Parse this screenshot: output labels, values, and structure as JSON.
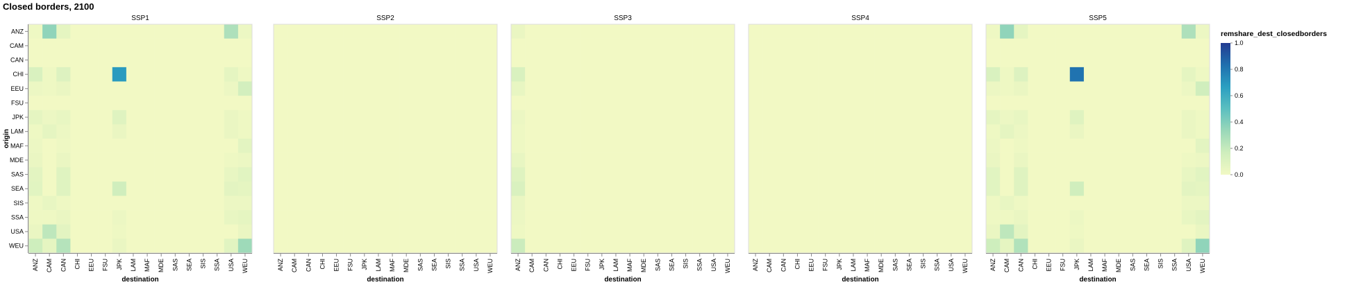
{
  "title": "Closed borders, 2100",
  "chart_data": {
    "type": "heatmap",
    "title": "Closed borders, 2100",
    "xlabel": "destination",
    "ylabel": "origin",
    "panels": [
      "SSP1",
      "SSP2",
      "SSP3",
      "SSP4",
      "SSP5"
    ],
    "origins": [
      "ANZ",
      "CAM",
      "CAN",
      "CHI",
      "EEU",
      "FSU",
      "JPK",
      "LAM",
      "MAF",
      "MDE",
      "SAS",
      "SEA",
      "SIS",
      "SSA",
      "USA",
      "WEU"
    ],
    "destinations": [
      "ANZ",
      "CAM",
      "CAN",
      "CHI",
      "EEU",
      "FSU",
      "JPK",
      "LAM",
      "MAF",
      "MDE",
      "SAS",
      "SEA",
      "SIS",
      "SSA",
      "USA",
      "WEU"
    ],
    "legend": {
      "title": "remshare_dest_closedborders",
      "ticks": [
        1.0,
        0.8,
        0.6,
        0.4,
        0.2,
        0.0
      ],
      "domain": [
        0,
        1
      ],
      "stops": [
        "#f2f9c4",
        "#cfeebd",
        "#9ad8b9",
        "#5bbfc0",
        "#2b9fc1",
        "#1f6fae",
        "#233c91"
      ]
    },
    "values": {
      "SSP1": [
        [
          0.02,
          0.36,
          0.06,
          0,
          0,
          0,
          0,
          0,
          0,
          0,
          0,
          0,
          0,
          0,
          0.27,
          0.03
        ],
        [
          0,
          0,
          0,
          0,
          0,
          0,
          0,
          0,
          0,
          0,
          0,
          0,
          0,
          0,
          0,
          0
        ],
        [
          0,
          0,
          0,
          0,
          0,
          0,
          0,
          0,
          0,
          0,
          0,
          0,
          0,
          0,
          0,
          0
        ],
        [
          0.12,
          0.02,
          0.1,
          0,
          0,
          0,
          0.68,
          0,
          0,
          0,
          0,
          0,
          0,
          0,
          0.06,
          0.02
        ],
        [
          0.03,
          0.02,
          0.04,
          0,
          0,
          0,
          0,
          0,
          0,
          0,
          0,
          0,
          0,
          0,
          0.03,
          0.15
        ],
        [
          0,
          0,
          0,
          0,
          0,
          0,
          0,
          0,
          0,
          0,
          0,
          0,
          0,
          0,
          0,
          0
        ],
        [
          0.06,
          0.03,
          0.05,
          0,
          0,
          0,
          0.09,
          0,
          0,
          0,
          0,
          0,
          0,
          0,
          0.04,
          0.02
        ],
        [
          0.02,
          0.06,
          0.03,
          0,
          0,
          0,
          0.04,
          0,
          0,
          0,
          0,
          0,
          0,
          0,
          0.04,
          0.02
        ],
        [
          0.03,
          0,
          0.02,
          0,
          0,
          0,
          0,
          0,
          0,
          0,
          0,
          0,
          0,
          0,
          0,
          0.07
        ],
        [
          0.04,
          0,
          0.04,
          0,
          0,
          0,
          0,
          0,
          0,
          0,
          0,
          0,
          0,
          0,
          0.02,
          0.03
        ],
        [
          0.07,
          0,
          0.09,
          0,
          0,
          0,
          0,
          0,
          0,
          0,
          0,
          0,
          0,
          0,
          0.05,
          0.08
        ],
        [
          0.08,
          0,
          0.09,
          0,
          0,
          0,
          0.16,
          0,
          0,
          0,
          0,
          0,
          0,
          0,
          0.07,
          0.06
        ],
        [
          0.02,
          0.05,
          0.02,
          0,
          0,
          0,
          0,
          0,
          0,
          0,
          0,
          0,
          0,
          0,
          0.03,
          0.03
        ],
        [
          0.02,
          0.02,
          0.04,
          0,
          0,
          0,
          0.03,
          0,
          0,
          0,
          0,
          0,
          0,
          0,
          0.05,
          0.06
        ],
        [
          0.04,
          0.22,
          0.07,
          0,
          0,
          0,
          0.02,
          0,
          0,
          0,
          0,
          0,
          0,
          0,
          0,
          0.04
        ],
        [
          0.17,
          0.06,
          0.25,
          0,
          0,
          0,
          0.04,
          0,
          0,
          0,
          0,
          0,
          0,
          0,
          0.08,
          0.32
        ]
      ],
      "SSP2": "zeros",
      "SSP3": [
        [
          0.04,
          0,
          0,
          0,
          0,
          0,
          0,
          0,
          0,
          0,
          0,
          0,
          0,
          0,
          0,
          0
        ],
        [
          0,
          0,
          0,
          0,
          0,
          0,
          0,
          0,
          0,
          0,
          0,
          0,
          0,
          0,
          0,
          0
        ],
        [
          0,
          0,
          0,
          0,
          0,
          0,
          0,
          0,
          0,
          0,
          0,
          0,
          0,
          0,
          0,
          0
        ],
        [
          0.12,
          0,
          0,
          0,
          0,
          0,
          0,
          0,
          0,
          0,
          0,
          0,
          0,
          0,
          0,
          0
        ],
        [
          0.05,
          0,
          0,
          0,
          0,
          0,
          0,
          0,
          0,
          0,
          0,
          0,
          0,
          0,
          0,
          0
        ],
        [
          0,
          0,
          0,
          0,
          0,
          0,
          0,
          0,
          0,
          0,
          0,
          0,
          0,
          0,
          0,
          0
        ],
        [
          0.03,
          0,
          0,
          0,
          0,
          0,
          0,
          0,
          0,
          0,
          0,
          0,
          0,
          0,
          0,
          0
        ],
        [
          0.02,
          0,
          0,
          0,
          0,
          0,
          0,
          0,
          0,
          0,
          0,
          0,
          0,
          0,
          0,
          0
        ],
        [
          0.02,
          0,
          0,
          0,
          0,
          0,
          0,
          0,
          0,
          0,
          0,
          0,
          0,
          0,
          0,
          0
        ],
        [
          0.05,
          0,
          0,
          0,
          0,
          0,
          0,
          0,
          0,
          0,
          0,
          0,
          0,
          0,
          0,
          0
        ],
        [
          0.09,
          0,
          0,
          0,
          0,
          0,
          0,
          0,
          0,
          0,
          0,
          0,
          0,
          0,
          0,
          0
        ],
        [
          0.12,
          0,
          0,
          0,
          0,
          0,
          0,
          0,
          0,
          0,
          0,
          0,
          0,
          0,
          0,
          0
        ],
        [
          0.04,
          0,
          0,
          0,
          0,
          0,
          0,
          0,
          0,
          0,
          0,
          0,
          0,
          0,
          0,
          0
        ],
        [
          0.03,
          0,
          0,
          0,
          0,
          0,
          0,
          0,
          0,
          0,
          0,
          0,
          0,
          0,
          0,
          0
        ],
        [
          0.02,
          0,
          0,
          0,
          0,
          0,
          0,
          0,
          0,
          0,
          0,
          0,
          0,
          0,
          0,
          0
        ],
        [
          0.18,
          0,
          0,
          0,
          0,
          0,
          0,
          0,
          0,
          0,
          0,
          0,
          0,
          0,
          0,
          0
        ]
      ],
      "SSP4": "zeros",
      "SSP5": [
        [
          0.02,
          0.36,
          0.06,
          0,
          0,
          0,
          0,
          0,
          0,
          0,
          0,
          0,
          0,
          0,
          0.27,
          0.03
        ],
        [
          0,
          0,
          0,
          0,
          0,
          0,
          0,
          0,
          0,
          0,
          0,
          0,
          0,
          0,
          0,
          0
        ],
        [
          0,
          0,
          0,
          0,
          0,
          0,
          0,
          0,
          0,
          0,
          0,
          0,
          0,
          0,
          0,
          0
        ],
        [
          0.12,
          0.02,
          0.1,
          0,
          0,
          0,
          0.82,
          0,
          0,
          0,
          0,
          0,
          0,
          0,
          0.06,
          0.02
        ],
        [
          0.03,
          0.02,
          0.04,
          0,
          0,
          0,
          0,
          0,
          0,
          0,
          0,
          0,
          0,
          0,
          0.03,
          0.16
        ],
        [
          0,
          0,
          0,
          0,
          0,
          0,
          0,
          0,
          0,
          0,
          0,
          0,
          0,
          0,
          0,
          0
        ],
        [
          0.06,
          0.03,
          0.05,
          0,
          0,
          0,
          0.09,
          0,
          0,
          0,
          0,
          0,
          0,
          0,
          0.04,
          0.02
        ],
        [
          0.02,
          0.06,
          0.03,
          0,
          0,
          0,
          0.04,
          0,
          0,
          0,
          0,
          0,
          0,
          0,
          0.04,
          0.02
        ],
        [
          0.03,
          0,
          0.02,
          0,
          0,
          0,
          0,
          0,
          0,
          0,
          0,
          0,
          0,
          0,
          0,
          0.07
        ],
        [
          0.04,
          0,
          0.04,
          0,
          0,
          0,
          0,
          0,
          0,
          0,
          0,
          0,
          0,
          0,
          0.02,
          0.03
        ],
        [
          0.08,
          0,
          0.09,
          0,
          0,
          0,
          0,
          0,
          0,
          0,
          0,
          0,
          0,
          0,
          0.05,
          0.08
        ],
        [
          0.08,
          0,
          0.09,
          0,
          0,
          0,
          0.16,
          0,
          0,
          0,
          0,
          0,
          0,
          0,
          0.07,
          0.06
        ],
        [
          0.02,
          0.05,
          0.02,
          0,
          0,
          0,
          0,
          0,
          0,
          0,
          0,
          0,
          0,
          0,
          0.03,
          0.03
        ],
        [
          0.02,
          0.02,
          0.04,
          0,
          0,
          0,
          0.03,
          0,
          0,
          0,
          0,
          0,
          0,
          0,
          0.05,
          0.07
        ],
        [
          0.04,
          0.22,
          0.07,
          0,
          0,
          0,
          0.02,
          0,
          0,
          0,
          0,
          0,
          0,
          0,
          0,
          0.04
        ],
        [
          0.17,
          0.06,
          0.26,
          0,
          0,
          0,
          0.04,
          0,
          0,
          0,
          0,
          0,
          0,
          0,
          0.09,
          0.36
        ]
      ]
    }
  }
}
